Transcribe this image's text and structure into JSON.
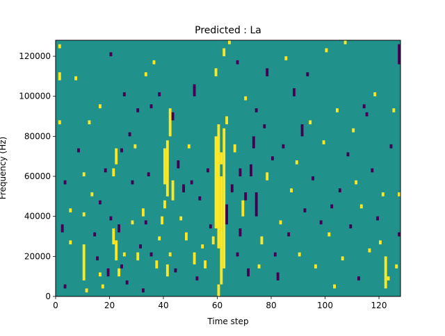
{
  "chart_data": {
    "type": "heatmap",
    "title": "Predicted : La",
    "xlabel": "Time step",
    "ylabel": "Frequency (Hz)",
    "xlim": [
      0,
      128
    ],
    "ylim": [
      0,
      128000
    ],
    "x_ticks": [
      0,
      20,
      40,
      60,
      80,
      100,
      120
    ],
    "x_tick_labels": [
      "0",
      "20",
      "40",
      "60",
      "80",
      "100",
      "120"
    ],
    "y_ticks": [
      0,
      20000,
      40000,
      60000,
      80000,
      100000,
      120000
    ],
    "y_tick_labels": [
      "0",
      "20000",
      "40000",
      "60000",
      "80000",
      "100000",
      "120000"
    ],
    "grid": false,
    "legend": "none",
    "value_levels": [
      -1,
      0,
      1
    ],
    "colors": {
      "-1": "#440154",
      "0": "#21918c",
      "1": "#fde725"
    },
    "n_time_steps": 128,
    "n_freq_bins": 64,
    "bin_height_hz": 2000,
    "cells": [
      {
        "t": 1,
        "f0": 124000,
        "f1": 126000,
        "v": 1
      },
      {
        "t": 1,
        "f0": 108000,
        "f1": 112000,
        "v": 1
      },
      {
        "t": 1,
        "f0": 86000,
        "f1": 88000,
        "v": 1
      },
      {
        "t": 2,
        "f0": 32000,
        "f1": 36000,
        "v": -1
      },
      {
        "t": 3,
        "f0": 56000,
        "f1": 58000,
        "v": -1
      },
      {
        "t": 3,
        "f0": 4000,
        "f1": 6000,
        "v": -1
      },
      {
        "t": 5,
        "f0": 26000,
        "f1": 28000,
        "v": 1
      },
      {
        "t": 5,
        "f0": 42000,
        "f1": 44000,
        "v": 1
      },
      {
        "t": 7,
        "f0": 108000,
        "f1": 110000,
        "v": 1
      },
      {
        "t": 8,
        "f0": 72000,
        "f1": 74000,
        "v": -1
      },
      {
        "t": 10,
        "f0": 60000,
        "f1": 62000,
        "v": 1
      },
      {
        "t": 10,
        "f0": 40000,
        "f1": 42000,
        "v": 1
      },
      {
        "t": 10,
        "f0": 8000,
        "f1": 26000,
        "v": 1
      },
      {
        "t": 11,
        "f0": 2000,
        "f1": 4000,
        "v": 1
      },
      {
        "t": 12,
        "f0": 86000,
        "f1": 88000,
        "v": 1
      },
      {
        "t": 13,
        "f0": 50000,
        "f1": 52000,
        "v": 1
      },
      {
        "t": 14,
        "f0": 30000,
        "f1": 32000,
        "v": -1
      },
      {
        "t": 15,
        "f0": 18000,
        "f1": 20000,
        "v": -1
      },
      {
        "t": 16,
        "f0": 94000,
        "f1": 96000,
        "v": 1
      },
      {
        "t": 16,
        "f0": 46000,
        "f1": 48000,
        "v": -1
      },
      {
        "t": 16,
        "f0": 10000,
        "f1": 12000,
        "v": 1
      },
      {
        "t": 17,
        "f0": 4000,
        "f1": 6000,
        "v": 1
      },
      {
        "t": 18,
        "f0": 62000,
        "f1": 64000,
        "v": -1
      },
      {
        "t": 19,
        "f0": 10000,
        "f1": 14000,
        "v": -1
      },
      {
        "t": 20,
        "f0": 120000,
        "f1": 122000,
        "v": -1
      },
      {
        "t": 20,
        "f0": 38000,
        "f1": 40000,
        "v": -1
      },
      {
        "t": 21,
        "f0": 26000,
        "f1": 34000,
        "v": 1
      },
      {
        "t": 21,
        "f0": 60000,
        "f1": 64000,
        "v": 1
      },
      {
        "t": 22,
        "f0": 18000,
        "f1": 28000,
        "v": 1
      },
      {
        "t": 22,
        "f0": 66000,
        "f1": 74000,
        "v": 1
      },
      {
        "t": 23,
        "f0": 10000,
        "f1": 14000,
        "v": 1
      },
      {
        "t": 23,
        "f0": 32000,
        "f1": 36000,
        "v": -1
      },
      {
        "t": 24,
        "f0": 72000,
        "f1": 74000,
        "v": -1
      },
      {
        "t": 24,
        "f0": 14000,
        "f1": 16000,
        "v": -1
      },
      {
        "t": 25,
        "f0": 100000,
        "f1": 102000,
        "v": -1
      },
      {
        "t": 25,
        "f0": 20000,
        "f1": 22000,
        "v": 1
      },
      {
        "t": 26,
        "f0": 6000,
        "f1": 8000,
        "v": -1
      },
      {
        "t": 27,
        "f0": 80000,
        "f1": 82000,
        "v": -1
      },
      {
        "t": 28,
        "f0": 56000,
        "f1": 58000,
        "v": -1
      },
      {
        "t": 28,
        "f0": 36000,
        "f1": 38000,
        "v": 1
      },
      {
        "t": 29,
        "f0": 74000,
        "f1": 76000,
        "v": 1
      },
      {
        "t": 30,
        "f0": 92000,
        "f1": 94000,
        "v": -1
      },
      {
        "t": 30,
        "f0": 18000,
        "f1": 22000,
        "v": 1
      },
      {
        "t": 31,
        "f0": 24000,
        "f1": 26000,
        "v": -1
      },
      {
        "t": 32,
        "f0": 40000,
        "f1": 44000,
        "v": 1
      },
      {
        "t": 32,
        "f0": 2000,
        "f1": 4000,
        "v": -1
      },
      {
        "t": 33,
        "f0": 36000,
        "f1": 38000,
        "v": -1
      },
      {
        "t": 33,
        "f0": 110000,
        "f1": 112000,
        "v": 1
      },
      {
        "t": 34,
        "f0": 60000,
        "f1": 62000,
        "v": -1
      },
      {
        "t": 35,
        "f0": 94000,
        "f1": 96000,
        "v": -1
      },
      {
        "t": 35,
        "f0": 20000,
        "f1": 22000,
        "v": -1
      },
      {
        "t": 36,
        "f0": 116000,
        "f1": 118000,
        "v": 1
      },
      {
        "t": 37,
        "f0": 14000,
        "f1": 18000,
        "v": 1
      },
      {
        "t": 38,
        "f0": 28000,
        "f1": 30000,
        "v": 1
      },
      {
        "t": 38,
        "f0": 100000,
        "f1": 102000,
        "v": -1
      },
      {
        "t": 39,
        "f0": 36000,
        "f1": 40000,
        "v": 1
      },
      {
        "t": 40,
        "f0": 56000,
        "f1": 74000,
        "v": 1
      },
      {
        "t": 40,
        "f0": 44000,
        "f1": 48000,
        "v": 1
      },
      {
        "t": 41,
        "f0": 50000,
        "f1": 78000,
        "v": 1
      },
      {
        "t": 41,
        "f0": 10000,
        "f1": 16000,
        "v": 1
      },
      {
        "t": 42,
        "f0": 80000,
        "f1": 94000,
        "v": 1
      },
      {
        "t": 42,
        "f0": 20000,
        "f1": 22000,
        "v": 1
      },
      {
        "t": 43,
        "f0": 48000,
        "f1": 58000,
        "v": 1
      },
      {
        "t": 43,
        "f0": 88000,
        "f1": 92000,
        "v": -1
      },
      {
        "t": 44,
        "f0": 12000,
        "f1": 14000,
        "v": -1
      },
      {
        "t": 45,
        "f0": 64000,
        "f1": 68000,
        "v": -1
      },
      {
        "t": 46,
        "f0": 38000,
        "f1": 40000,
        "v": 1
      },
      {
        "t": 47,
        "f0": 52000,
        "f1": 56000,
        "v": -1
      },
      {
        "t": 48,
        "f0": 28000,
        "f1": 32000,
        "v": 1
      },
      {
        "t": 49,
        "f0": 74000,
        "f1": 76000,
        "v": 1
      },
      {
        "t": 50,
        "f0": 56000,
        "f1": 58000,
        "v": -1
      },
      {
        "t": 51,
        "f0": 100000,
        "f1": 106000,
        "v": -1
      },
      {
        "t": 51,
        "f0": 16000,
        "f1": 22000,
        "v": 1
      },
      {
        "t": 52,
        "f0": 8000,
        "f1": 10000,
        "v": -1
      },
      {
        "t": 53,
        "f0": 48000,
        "f1": 50000,
        "v": -1
      },
      {
        "t": 54,
        "f0": 24000,
        "f1": 26000,
        "v": 1
      },
      {
        "t": 55,
        "f0": 14000,
        "f1": 18000,
        "v": 1
      },
      {
        "t": 56,
        "f0": 62000,
        "f1": 64000,
        "v": -1
      },
      {
        "t": 57,
        "f0": 34000,
        "f1": 36000,
        "v": -1
      },
      {
        "t": 58,
        "f0": 26000,
        "f1": 30000,
        "v": 1
      },
      {
        "t": 59,
        "f0": 34000,
        "f1": 80000,
        "v": 1
      },
      {
        "t": 59,
        "f0": 110000,
        "f1": 114000,
        "v": 1
      },
      {
        "t": 60,
        "f0": 24000,
        "f1": 86000,
        "v": 1
      },
      {
        "t": 60,
        "f0": 0,
        "f1": 6000,
        "v": 1
      },
      {
        "t": 61,
        "f0": 6000,
        "f1": 60000,
        "v": 1
      },
      {
        "t": 61,
        "f0": 66000,
        "f1": 72000,
        "v": 1
      },
      {
        "t": 62,
        "f0": 14000,
        "f1": 84000,
        "v": 1
      },
      {
        "t": 62,
        "f0": 120000,
        "f1": 124000,
        "v": 1
      },
      {
        "t": 63,
        "f0": 86000,
        "f1": 90000,
        "v": 1
      },
      {
        "t": 63,
        "f0": 36000,
        "f1": 46000,
        "v": -1
      },
      {
        "t": 64,
        "f0": 126000,
        "f1": 128000,
        "v": 1
      },
      {
        "t": 65,
        "f0": 52000,
        "f1": 56000,
        "v": -1
      },
      {
        "t": 66,
        "f0": 72000,
        "f1": 76000,
        "v": 1
      },
      {
        "t": 67,
        "f0": 20000,
        "f1": 22000,
        "v": -1
      },
      {
        "t": 67,
        "f0": 116000,
        "f1": 118000,
        "v": -1
      },
      {
        "t": 68,
        "f0": 60000,
        "f1": 64000,
        "v": -1
      },
      {
        "t": 68,
        "f0": 30000,
        "f1": 34000,
        "v": -1
      },
      {
        "t": 69,
        "f0": 40000,
        "f1": 48000,
        "v": 1
      },
      {
        "t": 70,
        "f0": 48000,
        "f1": 52000,
        "v": -1
      },
      {
        "t": 70,
        "f0": 98000,
        "f1": 100000,
        "v": 1
      },
      {
        "t": 71,
        "f0": 10000,
        "f1": 14000,
        "v": -1
      },
      {
        "t": 72,
        "f0": 60000,
        "f1": 66000,
        "v": -1
      },
      {
        "t": 73,
        "f0": 74000,
        "f1": 80000,
        "v": -1
      },
      {
        "t": 74,
        "f0": 40000,
        "f1": 52000,
        "v": -1
      },
      {
        "t": 74,
        "f0": 92000,
        "f1": 94000,
        "v": -1
      },
      {
        "t": 75,
        "f0": 14000,
        "f1": 16000,
        "v": 1
      },
      {
        "t": 76,
        "f0": 26000,
        "f1": 30000,
        "v": 1
      },
      {
        "t": 77,
        "f0": 84000,
        "f1": 86000,
        "v": -1
      },
      {
        "t": 78,
        "f0": 58000,
        "f1": 62000,
        "v": 1
      },
      {
        "t": 78,
        "f0": 110000,
        "f1": 114000,
        "v": -1
      },
      {
        "t": 80,
        "f0": 68000,
        "f1": 70000,
        "v": -1
      },
      {
        "t": 81,
        "f0": 20000,
        "f1": 22000,
        "v": -1
      },
      {
        "t": 82,
        "f0": 8000,
        "f1": 12000,
        "v": -1
      },
      {
        "t": 83,
        "f0": 36000,
        "f1": 38000,
        "v": 1
      },
      {
        "t": 84,
        "f0": 74000,
        "f1": 76000,
        "v": -1
      },
      {
        "t": 85,
        "f0": 118000,
        "f1": 120000,
        "v": 1
      },
      {
        "t": 86,
        "f0": 30000,
        "f1": 32000,
        "v": -1
      },
      {
        "t": 87,
        "f0": 52000,
        "f1": 54000,
        "v": 1
      },
      {
        "t": 88,
        "f0": 100000,
        "f1": 104000,
        "v": -1
      },
      {
        "t": 89,
        "f0": 66000,
        "f1": 68000,
        "v": 1
      },
      {
        "t": 90,
        "f0": 20000,
        "f1": 22000,
        "v": 1
      },
      {
        "t": 91,
        "f0": 80000,
        "f1": 86000,
        "v": -1
      },
      {
        "t": 92,
        "f0": 42000,
        "f1": 44000,
        "v": -1
      },
      {
        "t": 93,
        "f0": 110000,
        "f1": 112000,
        "v": -1
      },
      {
        "t": 94,
        "f0": 86000,
        "f1": 88000,
        "v": 1
      },
      {
        "t": 95,
        "f0": 58000,
        "f1": 60000,
        "v": -1
      },
      {
        "t": 96,
        "f0": 14000,
        "f1": 16000,
        "v": 1
      },
      {
        "t": 98,
        "f0": 36000,
        "f1": 38000,
        "v": -1
      },
      {
        "t": 99,
        "f0": 76000,
        "f1": 78000,
        "v": 1
      },
      {
        "t": 100,
        "f0": 122000,
        "f1": 124000,
        "v": 1
      },
      {
        "t": 101,
        "f0": 30000,
        "f1": 32000,
        "v": 1
      },
      {
        "t": 102,
        "f0": 44000,
        "f1": 46000,
        "v": -1
      },
      {
        "t": 103,
        "f0": 4000,
        "f1": 6000,
        "v": 1
      },
      {
        "t": 104,
        "f0": 92000,
        "f1": 94000,
        "v": 1
      },
      {
        "t": 105,
        "f0": 52000,
        "f1": 54000,
        "v": -1
      },
      {
        "t": 106,
        "f0": 18000,
        "f1": 20000,
        "v": 1
      },
      {
        "t": 107,
        "f0": 126000,
        "f1": 128000,
        "v": 1
      },
      {
        "t": 108,
        "f0": 70000,
        "f1": 72000,
        "v": -1
      },
      {
        "t": 109,
        "f0": 34000,
        "f1": 36000,
        "v": -1
      },
      {
        "t": 110,
        "f0": 82000,
        "f1": 84000,
        "v": 1
      },
      {
        "t": 111,
        "f0": 56000,
        "f1": 58000,
        "v": 1
      },
      {
        "t": 112,
        "f0": 8000,
        "f1": 10000,
        "v": -1
      },
      {
        "t": 113,
        "f0": 44000,
        "f1": 46000,
        "v": 1
      },
      {
        "t": 114,
        "f0": 94000,
        "f1": 96000,
        "v": -1
      },
      {
        "t": 115,
        "f0": 90000,
        "f1": 92000,
        "v": -1
      },
      {
        "t": 116,
        "f0": 22000,
        "f1": 24000,
        "v": 1
      },
      {
        "t": 117,
        "f0": 62000,
        "f1": 64000,
        "v": -1
      },
      {
        "t": 118,
        "f0": 100000,
        "f1": 102000,
        "v": 1
      },
      {
        "t": 119,
        "f0": 38000,
        "f1": 40000,
        "v": -1
      },
      {
        "t": 120,
        "f0": 26000,
        "f1": 28000,
        "v": 1
      },
      {
        "t": 121,
        "f0": 50000,
        "f1": 52000,
        "v": 1
      },
      {
        "t": 122,
        "f0": 4000,
        "f1": 20000,
        "v": 1
      },
      {
        "t": 123,
        "f0": 8000,
        "f1": 10000,
        "v": 1
      },
      {
        "t": 124,
        "f0": 74000,
        "f1": 76000,
        "v": -1
      },
      {
        "t": 125,
        "f0": 92000,
        "f1": 94000,
        "v": 1
      },
      {
        "t": 126,
        "f0": 14000,
        "f1": 16000,
        "v": 1
      },
      {
        "t": 127,
        "f0": 116000,
        "f1": 126000,
        "v": -1
      },
      {
        "t": 127,
        "f0": 50000,
        "f1": 52000,
        "v": 1
      },
      {
        "t": 127,
        "f0": 30000,
        "f1": 32000,
        "v": -1
      }
    ]
  }
}
